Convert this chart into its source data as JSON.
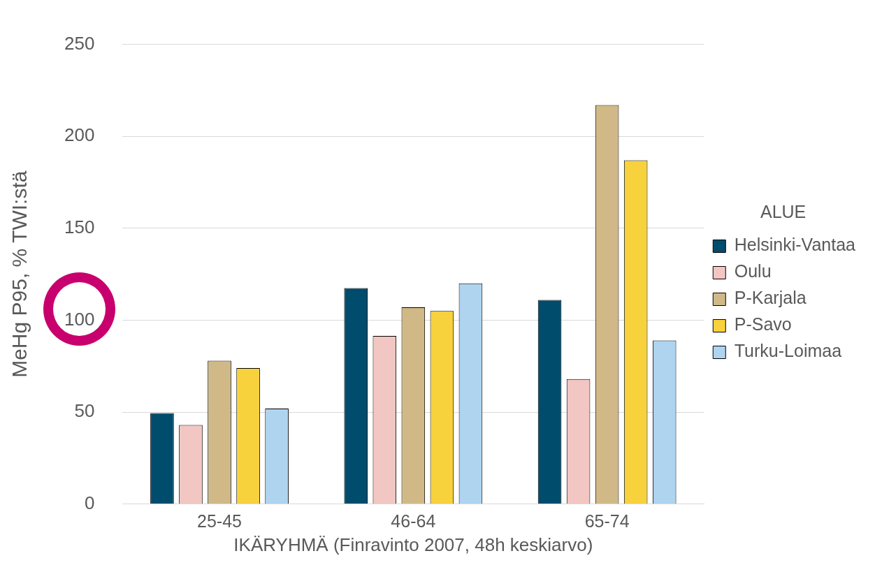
{
  "chart_data": {
    "type": "bar",
    "xlabel": "IKÄRYHMÄ (Finravinto 2007, 48h keskiarvo)",
    "ylabel": "MeHg P95, % TWI:stä",
    "legend_title": "ALUE",
    "categories": [
      "25-45",
      "46-64",
      "65-74"
    ],
    "series": [
      {
        "name": "Helsinki-Vantaa",
        "color": "#004c6d",
        "values": [
          49.5,
          117.5,
          111
        ]
      },
      {
        "name": "Oulu",
        "color": "#f2c6c2",
        "values": [
          43,
          91.5,
          68
        ]
      },
      {
        "name": "P-Karjala",
        "color": "#d1b987",
        "values": [
          78,
          107,
          217
        ]
      },
      {
        "name": "P-Savo",
        "color": "#f7d23c",
        "values": [
          74,
          105,
          187
        ]
      },
      {
        "name": "Turku-Loimaa",
        "color": "#aed4f0",
        "values": [
          52,
          120,
          89
        ]
      }
    ],
    "ylim": [
      0,
      250
    ],
    "yticks": [
      0,
      50,
      100,
      150,
      200,
      250
    ],
    "grid": "y",
    "legend": "right"
  }
}
